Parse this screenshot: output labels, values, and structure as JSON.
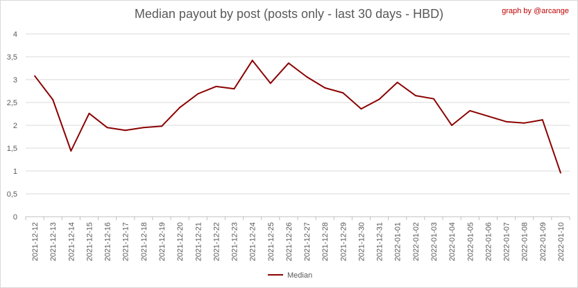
{
  "chart_data": {
    "type": "line",
    "title": "Median payout by post (posts only - last 30 days - HBD)",
    "credit": "graph by @arcange",
    "xlabel": "",
    "ylabel": "",
    "ylim": [
      0,
      4
    ],
    "yticks": [
      "0",
      "0,5",
      "1",
      "1,5",
      "2",
      "2,5",
      "3",
      "3,5",
      "4"
    ],
    "grid": true,
    "legend_position": "bottom",
    "x": [
      "2021-12-12",
      "2021-12-13",
      "2021-12-14",
      "2021-12-15",
      "2021-12-16",
      "2021-12-17",
      "2021-12-18",
      "2021-12-19",
      "2021-12-20",
      "2021-12-21",
      "2021-12-22",
      "2021-12-23",
      "2021-12-24",
      "2021-12-25",
      "2021-12-26",
      "2021-12-27",
      "2021-12-28",
      "2021-12-29",
      "2021-12-30",
      "2021-12-31",
      "2022-01-01",
      "2022-01-02",
      "2022-01-03",
      "2022-01-04",
      "2022-01-05",
      "2022-01-06",
      "2022-01-07",
      "2022-01-08",
      "2022-01-09",
      "2022-01-10"
    ],
    "series": [
      {
        "name": "Median",
        "color": "#8b0000",
        "values": [
          3.08,
          2.56,
          1.44,
          2.26,
          1.95,
          1.89,
          1.95,
          1.98,
          2.39,
          2.69,
          2.85,
          2.8,
          3.42,
          2.92,
          3.36,
          3.06,
          2.82,
          2.71,
          2.36,
          2.57,
          2.94,
          2.65,
          2.58,
          2.0,
          2.32,
          2.2,
          2.08,
          2.05,
          2.12,
          0.96
        ]
      }
    ]
  }
}
